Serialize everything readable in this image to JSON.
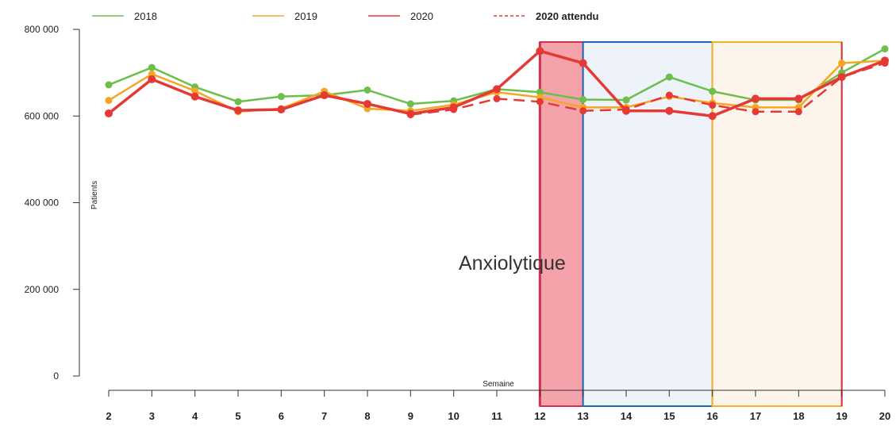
{
  "chart_data": {
    "type": "line",
    "ylabel": "Patients",
    "xlabel": "Semaine",
    "annotation": "Anxiolytique",
    "ylim": [
      0,
      800000
    ],
    "y_ticks": [
      {
        "value": 0,
        "label": "0"
      },
      {
        "value": 200000,
        "label": "200 000"
      },
      {
        "value": 400000,
        "label": "400 000"
      },
      {
        "value": 600000,
        "label": "600 000"
      },
      {
        "value": 800000,
        "label": "800 000"
      }
    ],
    "x": [
      2,
      3,
      4,
      5,
      6,
      7,
      8,
      9,
      10,
      11,
      12,
      13,
      14,
      15,
      16,
      17,
      18,
      19,
      20
    ],
    "x_tick_labels": [
      "2",
      "3",
      "4",
      "5",
      "6",
      "7",
      "8",
      "9",
      "10",
      "11",
      "12",
      "13",
      "14",
      "15",
      "16",
      "17",
      "18",
      "19",
      "20"
    ],
    "grid": false,
    "legend_position": "top",
    "series": [
      {
        "name": "2018",
        "color": "#6dbf4b",
        "style": "solid",
        "markers": true,
        "values": [
          672000,
          712000,
          667000,
          633000,
          645000,
          648000,
          660000,
          628000,
          635000,
          662000,
          655000,
          638000,
          637000,
          690000,
          657000,
          637000,
          637000,
          700000,
          755000
        ]
      },
      {
        "name": "2019",
        "color": "#f5a623",
        "style": "solid",
        "markers": true,
        "values": [
          636000,
          697000,
          658000,
          610000,
          617000,
          657000,
          617000,
          612000,
          626000,
          655000,
          643000,
          620000,
          620000,
          645000,
          630000,
          620000,
          620000,
          722000,
          728000
        ]
      },
      {
        "name": "2020",
        "color": "#e53935",
        "style": "solid",
        "markers": true,
        "values": [
          606000,
          685000,
          645000,
          613000,
          615000,
          648000,
          628000,
          605000,
          620000,
          662000,
          750000,
          722000,
          612000,
          612000,
          600000,
          640000,
          640000,
          690000,
          728000
        ]
      },
      {
        "name": "2020 attendu",
        "color": "#e53935",
        "style": "dashed",
        "markers": true,
        "values": [
          null,
          null,
          null,
          null,
          null,
          null,
          null,
          603000,
          615000,
          640000,
          633000,
          612000,
          615000,
          648000,
          625000,
          610000,
          610000,
          690000,
          722000
        ]
      }
    ],
    "highlight_periods": [
      {
        "from": 12,
        "to": 13,
        "fill": "#f4a3ab",
        "stroke": "#d32f4f"
      },
      {
        "from": 13,
        "to": 16,
        "fill": "#eef3fa",
        "stroke": "#1f66b8"
      },
      {
        "from": 16,
        "to": 19,
        "fill": "#fdf4ec",
        "stroke": "#f5b324"
      }
    ],
    "period_boundary": {
      "x": 19,
      "color": "#d32f4f"
    }
  }
}
